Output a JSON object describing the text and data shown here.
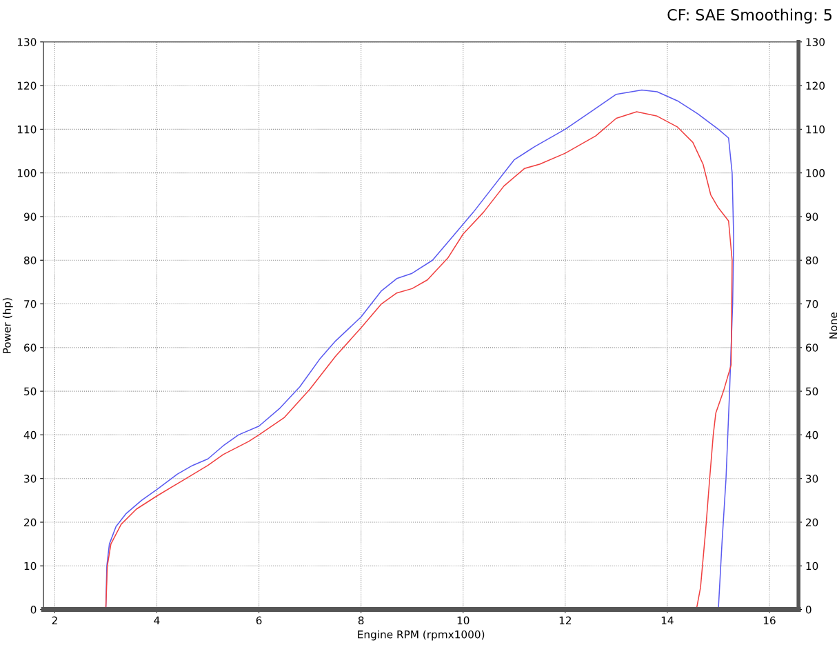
{
  "chart_data": {
    "type": "line",
    "xlabel": "Engine RPM (rpmx1000)",
    "ylabel": "Power (hp)",
    "y2label": "None",
    "annotations": [
      "CF: SAE Smoothing: 5"
    ],
    "xlim": [
      1.78,
      16.57
    ],
    "xticks": [
      2,
      4,
      6,
      8,
      10,
      12,
      14,
      16
    ],
    "ylim": [
      0,
      130
    ],
    "yticks": [
      0,
      10,
      20,
      30,
      40,
      50,
      60,
      70,
      80,
      90,
      100,
      110,
      120,
      130
    ],
    "y2lim": [
      0,
      130
    ],
    "y2ticks": [
      0,
      10,
      20,
      30,
      40,
      50,
      60,
      70,
      80,
      90,
      100,
      110,
      120,
      130
    ],
    "grid": true,
    "line_style": "solid",
    "marker": "none",
    "series": [
      {
        "color": "#5a5af0",
        "x": [
          3.0,
          3.02,
          3.07,
          3.2,
          3.4,
          3.7,
          4.0,
          4.4,
          4.7,
          5.0,
          5.3,
          5.6,
          6.0,
          6.4,
          6.8,
          7.2,
          7.5,
          8.0,
          8.4,
          8.7,
          9.0,
          9.4,
          9.8,
          10.2,
          10.6,
          11.0,
          11.4,
          12.0,
          12.5,
          13.0,
          13.5,
          13.8,
          14.2,
          14.6,
          15.0,
          15.2,
          15.27,
          15.3,
          15.28,
          15.22,
          15.15,
          15.07,
          15.0
        ],
        "values": [
          0,
          10,
          15,
          19,
          22,
          25,
          27.5,
          31,
          33,
          34.5,
          37.5,
          40,
          42,
          46,
          51,
          57.5,
          61.5,
          67,
          73,
          75.8,
          77,
          80,
          85.5,
          91,
          97,
          103,
          106,
          110,
          114,
          118,
          119,
          118.6,
          116.5,
          113.5,
          110,
          108,
          100,
          85,
          70,
          50,
          30,
          15,
          0
        ]
      },
      {
        "color": "#f04040",
        "x": [
          3.0,
          3.03,
          3.1,
          3.3,
          3.6,
          4.0,
          4.5,
          5.0,
          5.3,
          5.8,
          6.0,
          6.5,
          7.0,
          7.5,
          8.0,
          8.4,
          8.7,
          9.0,
          9.3,
          9.7,
          10.0,
          10.4,
          10.8,
          11.2,
          11.5,
          12.0,
          12.6,
          13.0,
          13.4,
          13.8,
          14.2,
          14.5,
          14.7,
          14.85,
          15.0,
          15.2,
          15.27,
          15.25,
          15.1,
          14.95,
          14.9,
          14.83,
          14.75,
          14.65,
          14.57
        ],
        "values": [
          0,
          10,
          15,
          19.5,
          23,
          26,
          29.5,
          33,
          35.5,
          38.5,
          40,
          44,
          50.5,
          58,
          64.5,
          70,
          72.5,
          73.5,
          75.5,
          80.5,
          86,
          91,
          97,
          101,
          102,
          104.5,
          108.5,
          112.5,
          114,
          113,
          110.5,
          107,
          102,
          95,
          92,
          89,
          80,
          56,
          50,
          45,
          40,
          30,
          18,
          5,
          0
        ]
      }
    ]
  }
}
